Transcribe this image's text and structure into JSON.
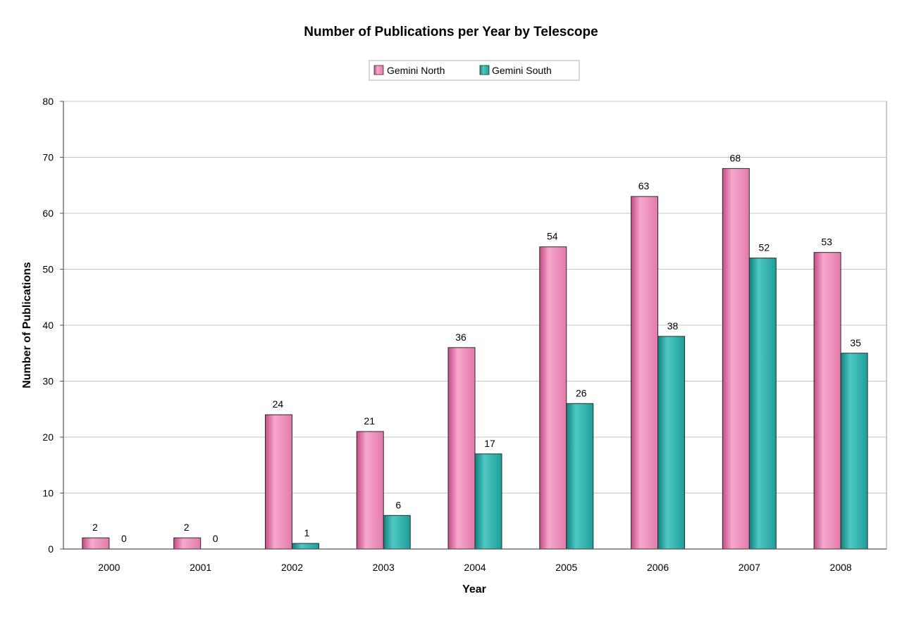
{
  "chart_data": {
    "type": "bar",
    "title": "Number of Publications per Year by Telescope",
    "xlabel": "Year",
    "ylabel": "Number of Publications",
    "categories": [
      "2000",
      "2001",
      "2002",
      "2003",
      "2004",
      "2005",
      "2006",
      "2007",
      "2008"
    ],
    "series": [
      {
        "name": "Gemini North",
        "color": "#e87fb0",
        "values": [
          2,
          2,
          24,
          21,
          36,
          54,
          63,
          68,
          53
        ],
        "labels": [
          "2",
          "2",
          "24",
          "21",
          "36",
          "54",
          "63",
          "68",
          "53"
        ]
      },
      {
        "name": "Gemini South",
        "color": "#27a9a7",
        "values": [
          0,
          0,
          1,
          6,
          17,
          26,
          38,
          52,
          35
        ],
        "labels": [
          "0",
          "0",
          "1",
          "6",
          "17",
          "26",
          "38",
          "52",
          "35"
        ]
      }
    ],
    "ylim": [
      0,
      80
    ],
    "yticks": [
      "0",
      "10",
      "20",
      "30",
      "40",
      "50",
      "60",
      "70",
      "80"
    ],
    "grid": true,
    "legend_position": "top-center"
  }
}
